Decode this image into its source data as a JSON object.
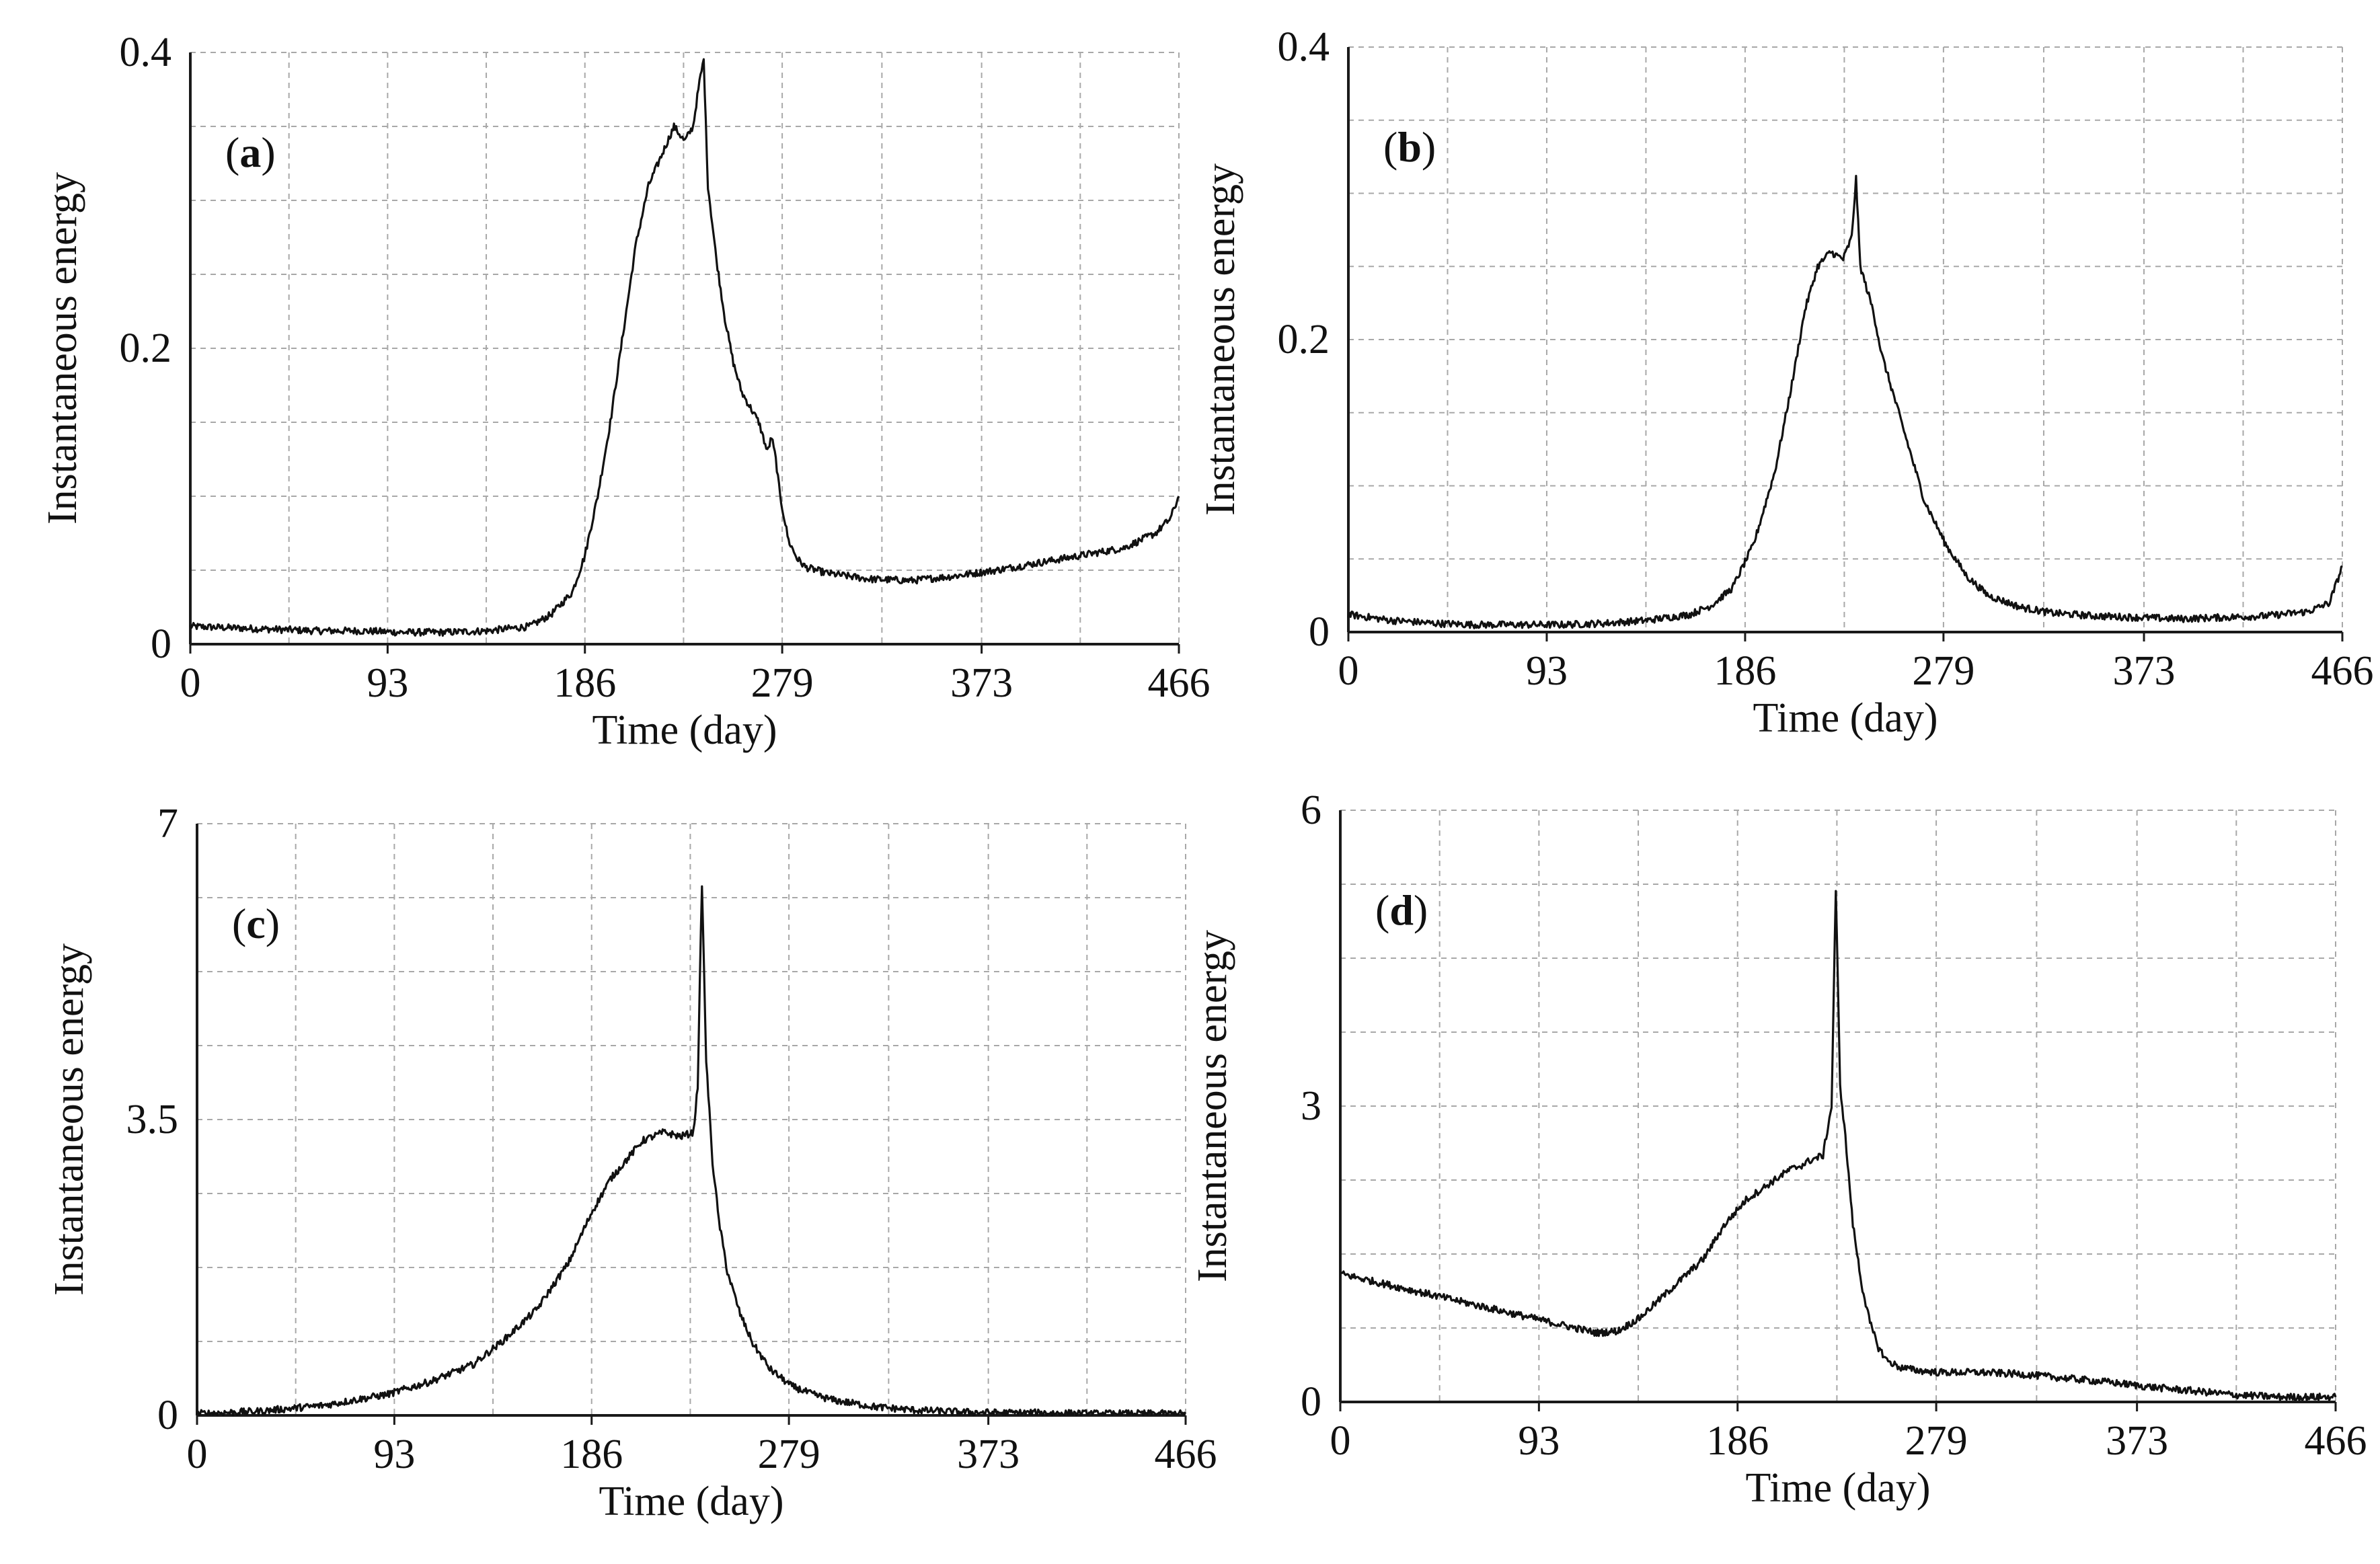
{
  "figure": {
    "colors": {
      "grid": "#a8a8a8",
      "axis": "#1a1a1a",
      "line": "#111111"
    }
  },
  "chart_data": [
    {
      "type": "line",
      "panel": "(a)",
      "tag_open": "(",
      "tag_letter": "a",
      "tag_close": ")",
      "xlabel": "Time (day)",
      "ylabel": "Instantaneous energy",
      "xlim": [
        0,
        466
      ],
      "ylim": [
        0,
        0.4
      ],
      "xticks": [
        0,
        93,
        186,
        279,
        373,
        466
      ],
      "xtick_labels": [
        "0",
        "93",
        "186",
        "279",
        "373",
        "466"
      ],
      "yticks": [
        0,
        0.2,
        0.4
      ],
      "ytick_labels": [
        "0",
        "0.2",
        "0.4"
      ],
      "grid": true,
      "series": [
        {
          "name": "Instantaneous energy",
          "x": [
            0,
            20,
            40,
            60,
            80,
            100,
            120,
            140,
            160,
            170,
            180,
            186,
            192,
            198,
            204,
            210,
            216,
            222,
            228,
            233,
            237,
            240,
            242,
            244,
            248,
            252,
            256,
            260,
            264,
            268,
            272,
            274,
            276,
            278,
            282,
            286,
            290,
            300,
            320,
            340,
            360,
            380,
            400,
            420,
            440,
            455,
            462,
            466
          ],
          "y": [
            0.012,
            0.011,
            0.01,
            0.009,
            0.009,
            0.008,
            0.008,
            0.009,
            0.012,
            0.02,
            0.035,
            0.06,
            0.1,
            0.15,
            0.21,
            0.27,
            0.31,
            0.33,
            0.35,
            0.34,
            0.35,
            0.38,
            0.395,
            0.31,
            0.26,
            0.22,
            0.19,
            0.17,
            0.16,
            0.15,
            0.13,
            0.14,
            0.125,
            0.1,
            0.07,
            0.058,
            0.052,
            0.048,
            0.044,
            0.043,
            0.046,
            0.05,
            0.055,
            0.06,
            0.065,
            0.075,
            0.085,
            0.1
          ]
        }
      ]
    },
    {
      "type": "line",
      "panel": "(b)",
      "tag_open": "(",
      "tag_letter": "b",
      "tag_close": ")",
      "xlabel": "Time (day)",
      "ylabel": "Instantaneous energy",
      "xlim": [
        0,
        466
      ],
      "ylim": [
        0,
        0.4
      ],
      "xticks": [
        0,
        93,
        186,
        279,
        373,
        466
      ],
      "xtick_labels": [
        "0",
        "93",
        "186",
        "279",
        "373",
        "466"
      ],
      "yticks": [
        0,
        0.2,
        0.4
      ],
      "ytick_labels": [
        "0",
        "0.2",
        "0.4"
      ],
      "grid": true,
      "series": [
        {
          "name": "Instantaneous energy",
          "x": [
            0,
            20,
            40,
            60,
            80,
            100,
            120,
            140,
            160,
            170,
            180,
            190,
            200,
            208,
            214,
            220,
            226,
            232,
            236,
            238,
            240,
            242,
            246,
            250,
            256,
            262,
            270,
            280,
            290,
            300,
            315,
            330,
            350,
            370,
            390,
            410,
            430,
            450,
            460,
            466
          ],
          "y": [
            0.012,
            0.008,
            0.006,
            0.005,
            0.005,
            0.005,
            0.006,
            0.008,
            0.012,
            0.018,
            0.03,
            0.06,
            0.11,
            0.17,
            0.22,
            0.25,
            0.26,
            0.255,
            0.27,
            0.31,
            0.25,
            0.24,
            0.22,
            0.19,
            0.16,
            0.13,
            0.09,
            0.06,
            0.038,
            0.025,
            0.017,
            0.013,
            0.011,
            0.01,
            0.009,
            0.01,
            0.011,
            0.014,
            0.02,
            0.045
          ]
        }
      ]
    },
    {
      "type": "line",
      "panel": "(c)",
      "tag_open": "(",
      "tag_letter": "c",
      "tag_close": ")",
      "xlabel": "Time (day)",
      "ylabel": "Instantaneous energy",
      "xlim": [
        0,
        466
      ],
      "ylim": [
        0,
        7
      ],
      "xticks": [
        0,
        93,
        186,
        279,
        373,
        466
      ],
      "xtick_labels": [
        "0",
        "93",
        "186",
        "279",
        "373",
        "466"
      ],
      "yticks": [
        0,
        3.5,
        7
      ],
      "ytick_labels": [
        "0",
        "3.5",
        "7"
      ],
      "grid": true,
      "series": [
        {
          "name": "Instantaneous energy",
          "x": [
            0,
            30,
            60,
            90,
            110,
            130,
            145,
            160,
            175,
            186,
            195,
            210,
            220,
            228,
            234,
            236,
            238,
            240,
            243,
            246,
            250,
            256,
            262,
            270,
            280,
            290,
            300,
            320,
            340,
            360,
            380,
            400,
            420,
            440,
            466
          ],
          "y": [
            0.02,
            0.05,
            0.12,
            0.25,
            0.4,
            0.6,
            0.9,
            1.25,
            1.8,
            2.4,
            2.8,
            3.25,
            3.35,
            3.3,
            3.35,
            3.9,
            6.3,
            4.2,
            3.0,
            2.3,
            1.7,
            1.2,
            0.85,
            0.55,
            0.35,
            0.25,
            0.18,
            0.1,
            0.06,
            0.04,
            0.03,
            0.03,
            0.02,
            0.02,
            0.02
          ]
        }
      ]
    },
    {
      "type": "line",
      "panel": "(d)",
      "tag_open": "(",
      "tag_letter": "d",
      "tag_close": ")",
      "xlabel": "Time (day)",
      "ylabel": "Instantaneous energy",
      "xlim": [
        0,
        466
      ],
      "ylim": [
        0,
        6
      ],
      "xticks": [
        0,
        93,
        186,
        279,
        373,
        466
      ],
      "xtick_labels": [
        "0",
        "93",
        "186",
        "279",
        "373",
        "466"
      ],
      "yticks": [
        0,
        3,
        6
      ],
      "ytick_labels": [
        "0",
        "3",
        "6"
      ],
      "grid": true,
      "series": [
        {
          "name": "Instantaneous energy",
          "x": [
            0,
            30,
            60,
            90,
            110,
            120,
            130,
            140,
            150,
            160,
            170,
            180,
            190,
            200,
            210,
            216,
            220,
            226,
            230,
            232,
            234,
            236,
            238,
            240,
            244,
            248,
            252,
            256,
            262,
            270,
            280,
            300,
            320,
            340,
            360,
            380,
            400,
            420,
            440,
            466
          ],
          "y": [
            1.3,
            1.15,
            1.0,
            0.85,
            0.75,
            0.7,
            0.72,
            0.85,
            1.05,
            1.25,
            1.45,
            1.8,
            2.05,
            2.2,
            2.35,
            2.4,
            2.45,
            2.5,
            3.0,
            5.2,
            3.2,
            2.8,
            2.3,
            1.8,
            1.2,
            0.8,
            0.55,
            0.42,
            0.35,
            0.32,
            0.3,
            0.3,
            0.28,
            0.24,
            0.2,
            0.15,
            0.11,
            0.07,
            0.05,
            0.05
          ]
        }
      ]
    }
  ]
}
